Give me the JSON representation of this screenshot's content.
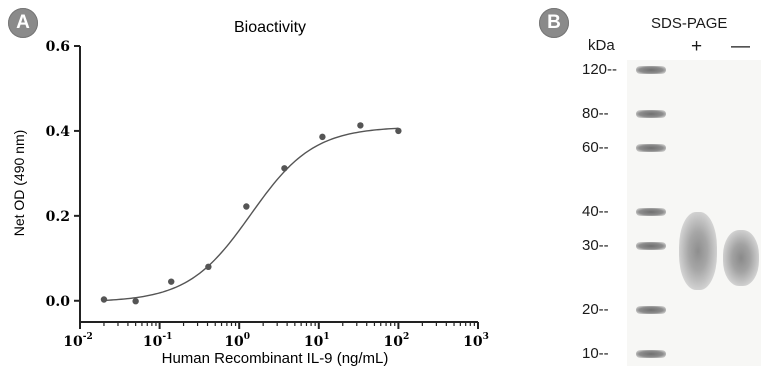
{
  "panel_a": {
    "badge": "A",
    "title": "Bioactivity"
  },
  "panel_b": {
    "badge": "B",
    "title": "SDS-PAGE",
    "unit_label": "kDa",
    "lanes": [
      "+",
      "—"
    ],
    "markers": [
      {
        "label": "120--",
        "kda": 120
      },
      {
        "label": "80--",
        "kda": 80
      },
      {
        "label": "60--",
        "kda": 60
      },
      {
        "label": "40--",
        "kda": 40
      },
      {
        "label": "30--",
        "kda": 30
      },
      {
        "label": "20--",
        "kda": 20
      },
      {
        "label": "10--",
        "kda": 10
      }
    ]
  },
  "chart_data": {
    "type": "scatter",
    "title": "Bioactivity",
    "xlabel": "Human Recombinant IL-9 (ng/mL)",
    "ylabel": "Net OD (490 nm)",
    "xscale": "log",
    "xlim": [
      0.01,
      1000
    ],
    "ylim": [
      -0.05,
      0.6
    ],
    "x_ticks": [
      {
        "value": 0.01,
        "base": "10",
        "exp": "-2"
      },
      {
        "value": 0.1,
        "base": "10",
        "exp": "-1"
      },
      {
        "value": 1,
        "base": "10",
        "exp": "0"
      },
      {
        "value": 10,
        "base": "10",
        "exp": "1"
      },
      {
        "value": 100,
        "base": "10",
        "exp": "2"
      },
      {
        "value": 1000,
        "base": "10",
        "exp": "3"
      }
    ],
    "y_ticks": [
      {
        "value": 0.0,
        "label": "0.0"
      },
      {
        "value": 0.2,
        "label": "0.2"
      },
      {
        "value": 0.4,
        "label": "0.4"
      },
      {
        "value": 0.6,
        "label": "0.6"
      }
    ],
    "grid": false,
    "series": [
      {
        "x": [
          0.02,
          0.05,
          0.14,
          0.41,
          1.23,
          3.7,
          11.1,
          33.3,
          100
        ],
        "y": [
          0.003,
          -0.001,
          0.045,
          0.08,
          0.222,
          0.312,
          0.386,
          0.413,
          0.4
        ]
      }
    ],
    "fit": {
      "model": "4PL",
      "bottom": -0.003,
      "top": 0.41,
      "ec50": 1.4,
      "hill": 1.1
    }
  }
}
